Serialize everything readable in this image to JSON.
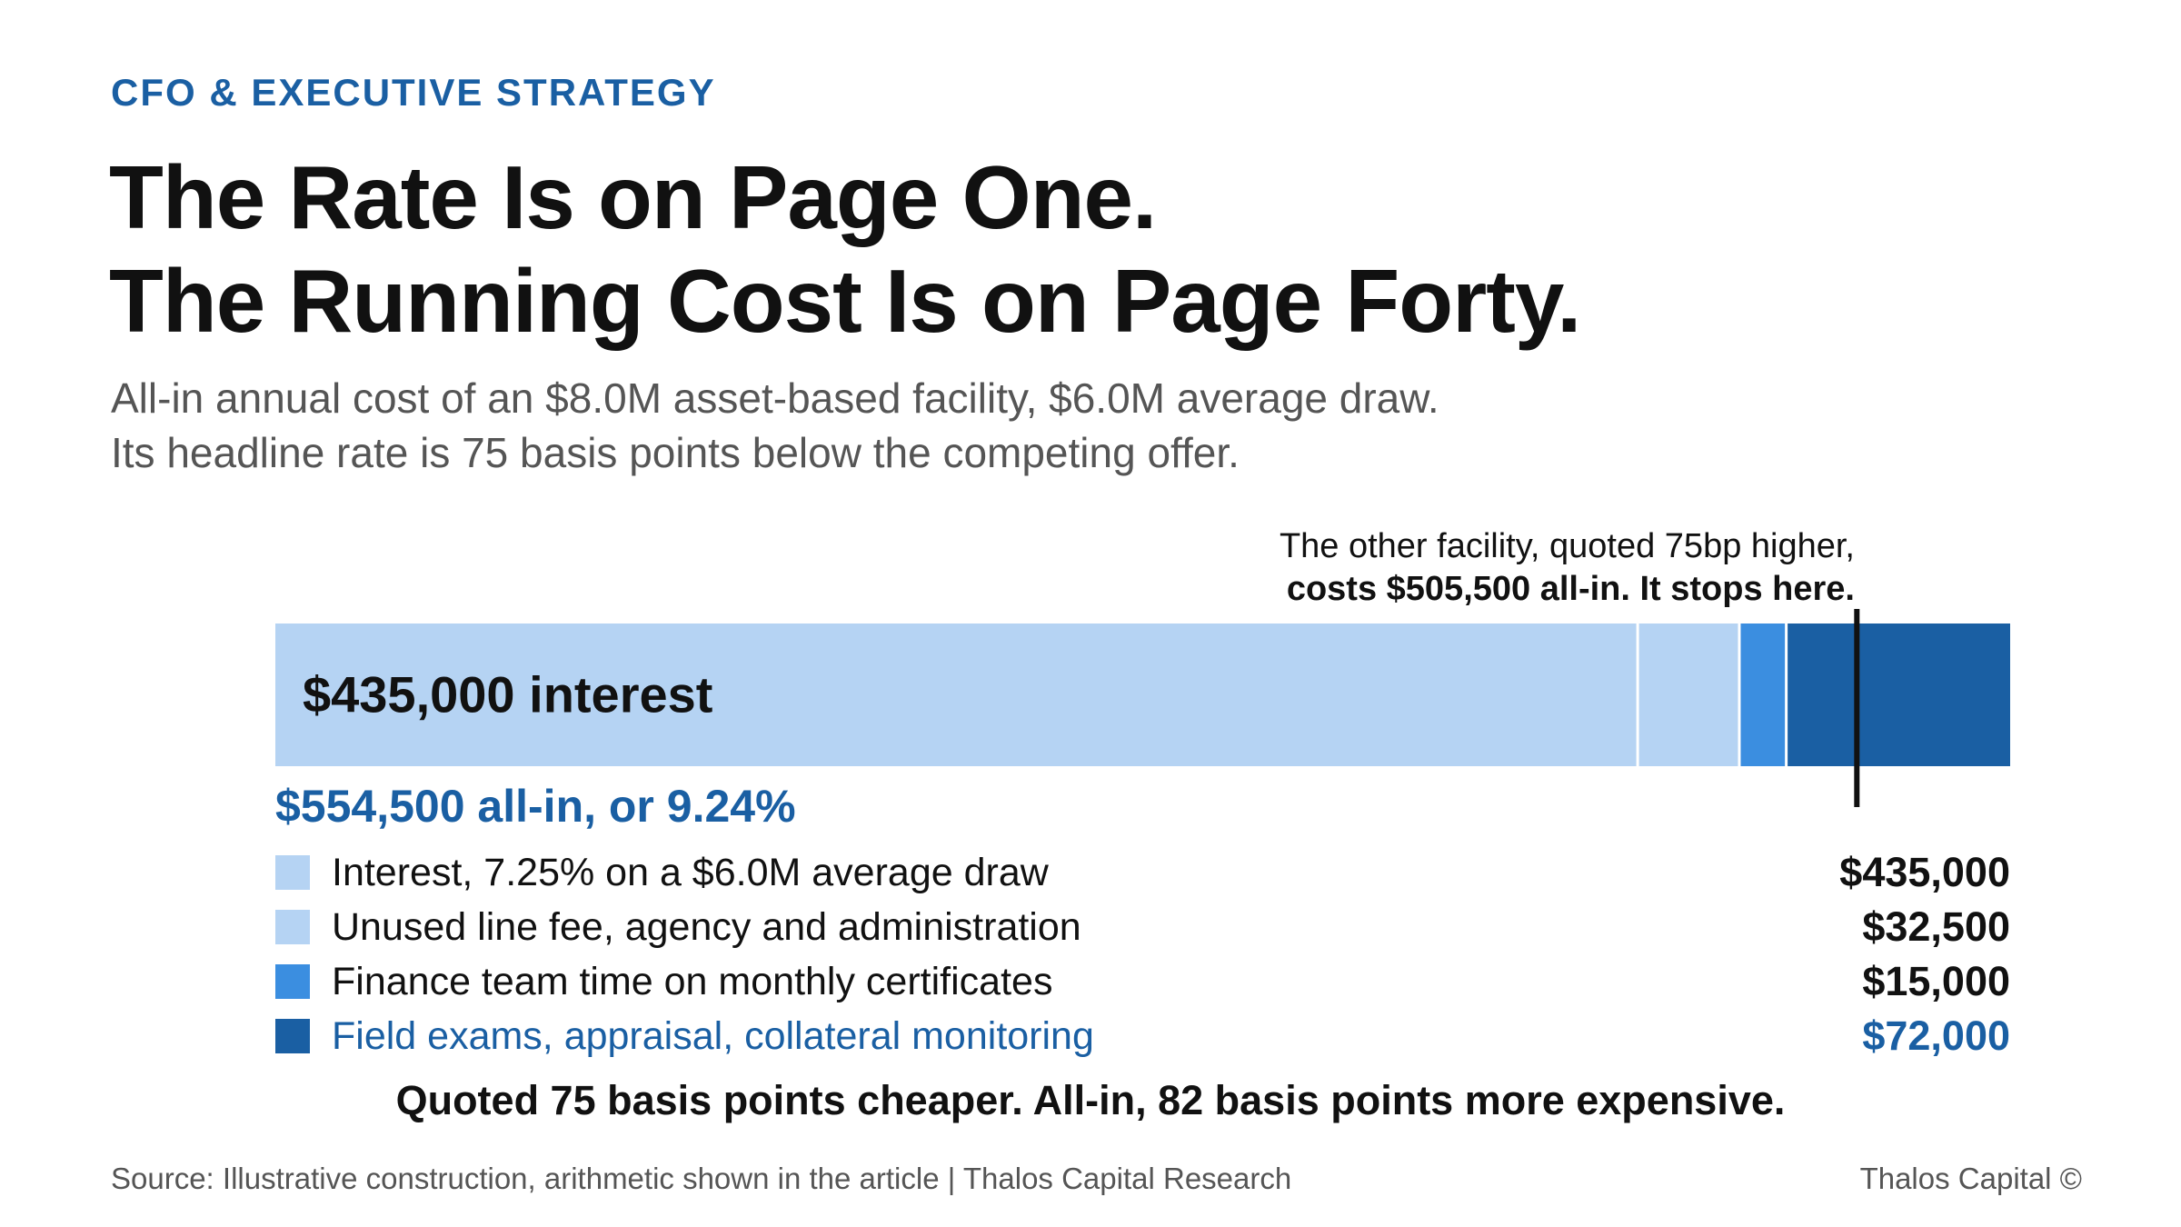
{
  "kicker": "CFO & EXECUTIVE STRATEGY",
  "title_lines": [
    "The Rate Is on Page One.",
    "The Running Cost Is on Page Forty."
  ],
  "subtitle_lines": [
    "All-in annual cost of an $8.0M asset-based facility, $6.0M average draw.",
    "Its headline rate is 75 basis points below the competing offer."
  ],
  "annotation": {
    "line1": "The other facility, quoted 75bp higher,",
    "line2": "costs $505,500 all-in. It stops here."
  },
  "total_label": "$554,500 all-in, or 9.24%",
  "conclusion": "Quoted 75 basis points cheaper. All-in, 82 basis points more expensive.",
  "source": "Source: Illustrative construction, arithmetic shown in the article | Thalos Capital Research",
  "brand": "Thalos Capital ©",
  "chart_data": {
    "type": "bar",
    "orientation": "horizontal-stacked",
    "unit": "USD",
    "total": 554500,
    "inbar_label": "$435,000 interest",
    "marker": {
      "value": 505500,
      "label": "The other facility, quoted 75bp higher, costs $505,500 all-in. It stops here."
    },
    "series": [
      {
        "name": "Interest, 7.25% on a $6.0M average draw",
        "value": 435000,
        "display": "$435,000",
        "color": "#b5d3f3",
        "highlight": false
      },
      {
        "name": "Unused line fee, agency and administration",
        "value": 32500,
        "display": "$32,500",
        "color": "#b5d3f3",
        "highlight": false
      },
      {
        "name": "Finance team time on monthly certificates",
        "value": 15000,
        "display": "$15,000",
        "color": "#3b8ee0",
        "highlight": false
      },
      {
        "name": "Field exams, appraisal, collateral monitoring",
        "value": 72000,
        "display": "$72,000",
        "color": "#1a5fa3",
        "highlight": true
      }
    ]
  }
}
